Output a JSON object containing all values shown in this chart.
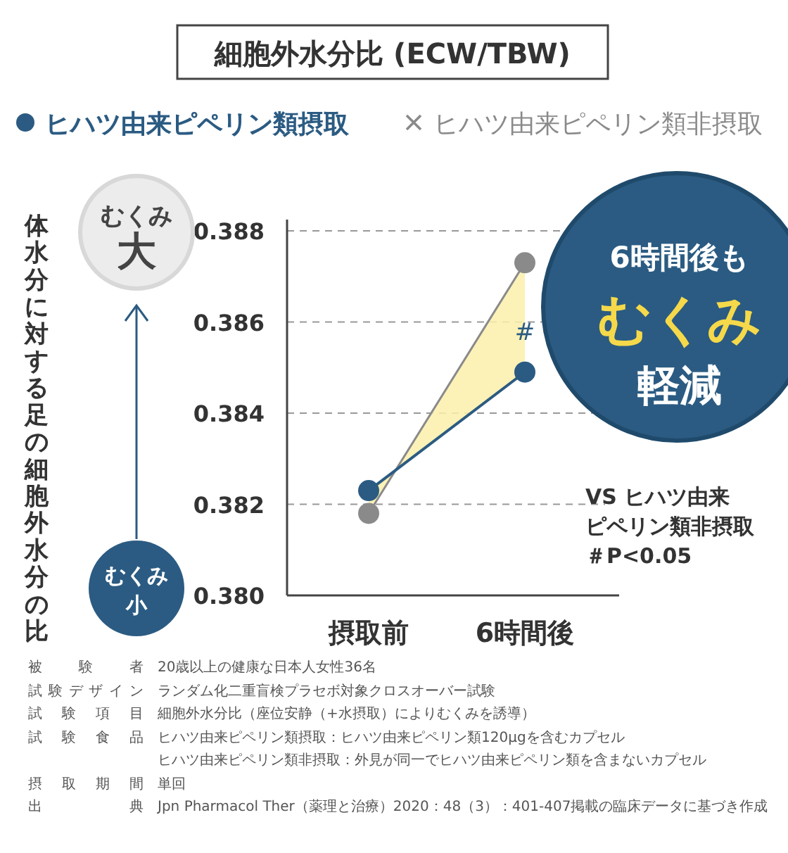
{
  "chart_data": {
    "type": "line",
    "title": "細胞外水分比 (ECW/TBW)",
    "categories": [
      "摂取前",
      "6時間後"
    ],
    "series": [
      {
        "name": "ヒハツ由来ピペリン類摂取",
        "color": "#2b5b82",
        "values": [
          0.3823,
          0.3849
        ]
      },
      {
        "name": "ヒハツ由来ピペリン類非摂取",
        "color": "#8a8a8a",
        "values": [
          0.3818,
          0.3873
        ],
        "lower": [
          0.3823,
          0.3849
        ],
        "upper": [
          0.3818,
          0.3873
        ]
      }
    ],
    "ylim": [
      0.38,
      0.388
    ],
    "yticks": [
      {
        "value": 0.38,
        "label": "0.380"
      },
      {
        "value": 0.382,
        "label": "0.382"
      },
      {
        "value": 0.384,
        "label": "0.384"
      },
      {
        "value": 0.386,
        "label": "0.386"
      },
      {
        "value": 0.388,
        "label": "0.388"
      }
    ],
    "grid": "y",
    "legend": "top left",
    "marker": "circle",
    "line_style": "solid",
    "annotations": [
      "体水分に対する足の細胞外水分の比",
      "むくみ",
      "大",
      "むくみ",
      "小",
      "6時間後も",
      "むくみ",
      "軽減",
      "VS ヒハツ由来",
      "ピペリン類非摂取",
      "＃P<0.05",
      {
        "text": "#",
        "x": "6時間後",
        "y": 0.3856
      },
      "被験者\t20歳以上の健康な日本人女性36名",
      "試験デザイン\tランダム化二重盲検プラセボ対象クロスオーバー試験",
      "試験項目\t細胞外水分比（座位安静（+水摂取）によりむくみを誘導）",
      "試験食品\tヒハツ由来ピペリン類摂取：ヒハツ由来ピペリン類120μgを含むカプセル",
      "\tヒハツ由来ピペリン類非摂取：外見が同一でヒハツ由来ピペリン類を含まないカプセル",
      "摂取期間\t単回",
      "出典\tJpn Pharmacol Ther（薬理と治療）2020：48（3）：401-407掲載の臨床データに基づき作成"
    ]
  }
}
